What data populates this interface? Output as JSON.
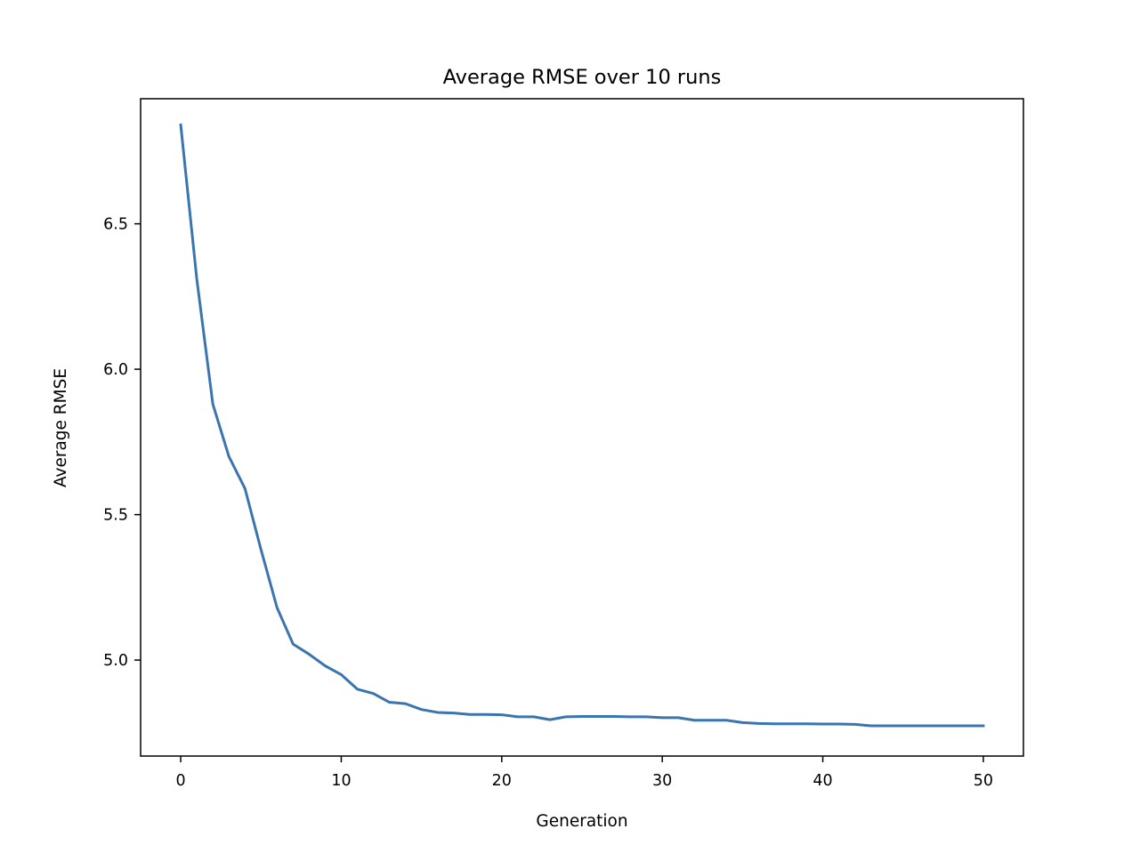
{
  "chart_data": {
    "type": "line",
    "title": "Average RMSE over 10 runs",
    "xlabel": "Generation",
    "ylabel": "Average RMSE",
    "xlim": [
      -2.5,
      52.5
    ],
    "ylim": [
      4.67,
      6.93
    ],
    "xticks": [
      0,
      10,
      20,
      30,
      40,
      50
    ],
    "yticks": [
      5.0,
      5.5,
      6.0,
      6.5
    ],
    "ytick_labels": [
      "5.0",
      "5.5",
      "6.0",
      "6.5"
    ],
    "grid": false,
    "legend": "none",
    "series": [
      {
        "color": "#3a75b0",
        "x": [
          0,
          1,
          2,
          3,
          4,
          5,
          6,
          7,
          8,
          9,
          10,
          11,
          12,
          13,
          14,
          15,
          16,
          17,
          18,
          19,
          20,
          21,
          22,
          23,
          24,
          25,
          26,
          27,
          28,
          29,
          30,
          31,
          32,
          33,
          34,
          35,
          36,
          37,
          38,
          39,
          40,
          41,
          42,
          43,
          44,
          45,
          46,
          47,
          48,
          49,
          50
        ],
        "y": [
          6.84,
          6.31,
          5.88,
          5.7,
          5.59,
          5.38,
          5.18,
          5.055,
          5.02,
          4.98,
          4.95,
          4.9,
          4.885,
          4.855,
          4.85,
          4.83,
          4.82,
          4.818,
          4.813,
          4.813,
          4.812,
          4.805,
          4.805,
          4.795,
          4.805,
          4.806,
          4.806,
          4.806,
          4.805,
          4.805,
          4.802,
          4.802,
          4.793,
          4.793,
          4.793,
          4.785,
          4.782,
          4.781,
          4.781,
          4.781,
          4.78,
          4.78,
          4.779,
          4.774,
          4.774,
          4.774,
          4.774,
          4.774,
          4.774,
          4.774,
          4.774
        ]
      }
    ]
  }
}
